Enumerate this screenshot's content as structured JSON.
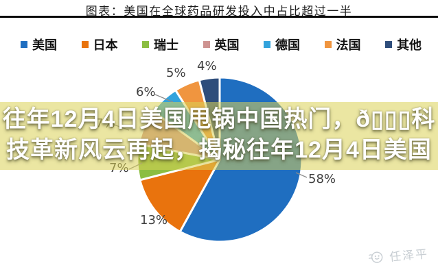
{
  "header": {
    "title": "图表：美国在全球药品研发投入中占比超过一半"
  },
  "legend": {
    "items": [
      {
        "label": "美国",
        "color": "#1F6EC0"
      },
      {
        "label": "日本",
        "color": "#E9730D"
      },
      {
        "label": "瑞士",
        "color": "#8BBE41"
      },
      {
        "label": "英国",
        "color": "#CE9391"
      },
      {
        "label": "德国",
        "color": "#33A3DC"
      },
      {
        "label": "法国",
        "color": "#F0953F"
      },
      {
        "label": "其他",
        "color": "#2E4D7B"
      }
    ]
  },
  "chart_data": {
    "type": "pie",
    "title": "图表：美国在全球药品研发投入中占比超过一半",
    "categories": [
      "美国",
      "日本",
      "瑞士",
      "英国",
      "德国",
      "法国",
      "其他"
    ],
    "values": [
      58,
      13,
      7,
      7,
      6,
      5,
      4
    ],
    "unit": "%",
    "colors": [
      "#1F6EC0",
      "#E9730D",
      "#8BBE41",
      "#CE9391",
      "#33A3DC",
      "#F0953F",
      "#2E4D7B"
    ],
    "labels": [
      "58%",
      "13%",
      "7%",
      "7%",
      "6%",
      "5%",
      "4%"
    ],
    "start_angle_deg": 0,
    "clockwise": true,
    "legend_position": "top",
    "slice_separator": "white gaps between slices",
    "note": "英国 slice (7%) and its label are partially hidden behind the headline banner"
  },
  "overlay": {
    "line1": "往年12月4日美国甩锅中国热门，ð▯▯▯科",
    "line2": "技革新风云再起，揭秘往年12月4日美国",
    "full_text": "往年12月4日美国甩锅中国热门，ð▯▯▯科技革新风云再起，揭秘往年12月4日美国",
    "band_color": "rgba(219,209,86,0.55)",
    "text_color": "#ffffff"
  },
  "watermark": {
    "text": "任泽平",
    "icon": "smiley-face-logo"
  }
}
